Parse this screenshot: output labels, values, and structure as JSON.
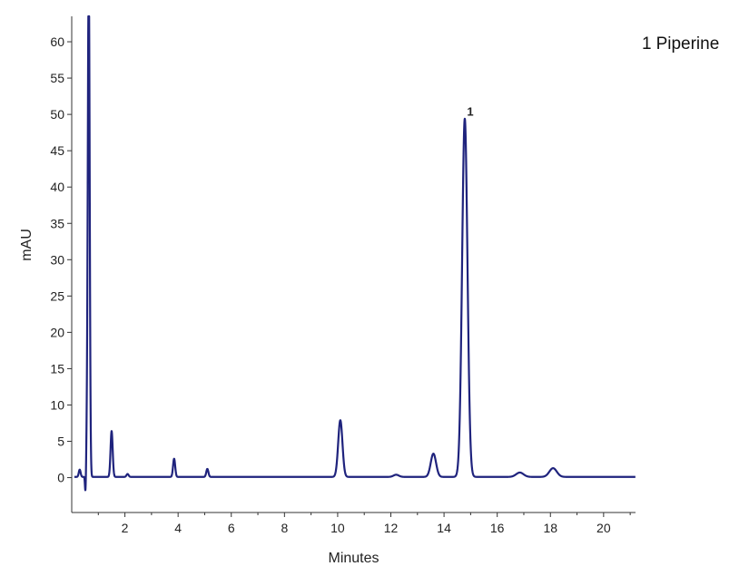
{
  "chart_data": {
    "type": "line",
    "title": "",
    "xlabel": "Minutes",
    "ylabel": "mAU",
    "xlim": [
      0,
      21.2
    ],
    "ylim": [
      -4.8,
      63.5
    ],
    "x_ticks": [
      2,
      4,
      6,
      8,
      10,
      12,
      14,
      16,
      18,
      20
    ],
    "y_ticks": [
      0,
      5,
      10,
      15,
      20,
      25,
      30,
      35,
      40,
      45,
      50,
      55,
      60
    ],
    "grid": false,
    "line_color": "#1f237d",
    "legend": {
      "entries": [
        {
          "number": "1",
          "name": "Piperine"
        }
      ],
      "placement": "top-right"
    },
    "peaks": [
      {
        "label": "",
        "rt": 0.3,
        "height": 1.0
      },
      {
        "label": "",
        "rt": 0.57,
        "height": 4.0
      },
      {
        "label": "",
        "rt": 0.64,
        "height": 70.0
      },
      {
        "label": "",
        "rt": 1.5,
        "height": 6.3
      },
      {
        "label": "",
        "rt": 2.1,
        "height": 0.4
      },
      {
        "label": "",
        "rt": 3.85,
        "height": 2.5
      },
      {
        "label": "",
        "rt": 5.1,
        "height": 1.1
      },
      {
        "label": "",
        "rt": 10.1,
        "height": 7.8
      },
      {
        "label": "",
        "rt": 12.2,
        "height": 0.3
      },
      {
        "label": "",
        "rt": 13.6,
        "height": 3.2
      },
      {
        "label": "1",
        "rt": 14.78,
        "height": 49.3
      },
      {
        "label": "",
        "rt": 16.85,
        "height": 0.6
      },
      {
        "label": "",
        "rt": 18.1,
        "height": 1.2
      }
    ],
    "dips": [
      {
        "rt": 0.52,
        "depth": -3.2
      }
    ]
  }
}
